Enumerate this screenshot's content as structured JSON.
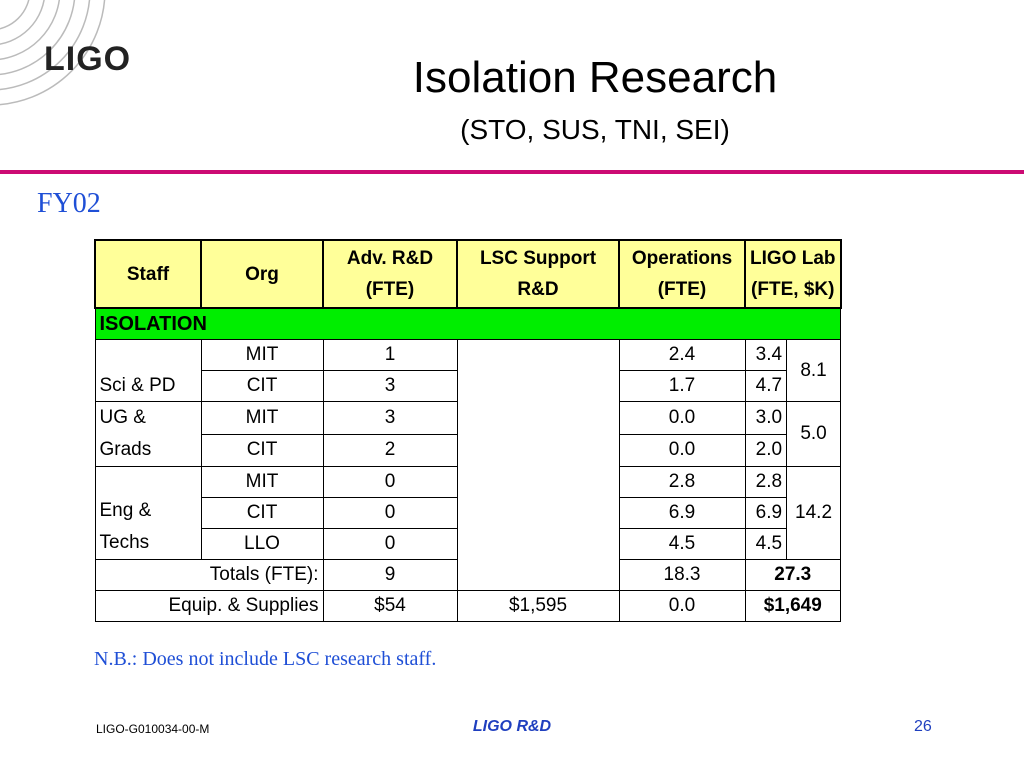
{
  "logo": {
    "text": "LIGO"
  },
  "header": {
    "title": "Isolation Research",
    "subtitle": "(STO, SUS, TNI, SEI)"
  },
  "fy_label": "FY02",
  "table": {
    "headers": {
      "staff": "Staff",
      "org": "Org",
      "adv_l1": "Adv. R&D",
      "adv_l2": "(FTE)",
      "lsc_l1": "LSC Support",
      "lsc_l2": "R&D",
      "ops_l1": "Operations",
      "ops_l2": "(FTE)",
      "lab_l1": "LIGO Lab",
      "lab_l2": "(FTE, $K)"
    },
    "section": "ISOLATION",
    "groups": {
      "sci_pd": "Sci & PD",
      "ug_1": "UG &",
      "ug_2": "Grads",
      "eng_1": "Eng &",
      "eng_2": "Techs"
    },
    "rows": [
      {
        "org": "MIT",
        "adv": "1",
        "ops": "2.4",
        "lab": "3.4"
      },
      {
        "org": "CIT",
        "adv": "3",
        "ops": "1.7",
        "lab": "4.7"
      },
      {
        "org": "MIT",
        "adv": "3",
        "ops": "0.0",
        "lab": "3.0"
      },
      {
        "org": "CIT",
        "adv": "2",
        "ops": "0.0",
        "lab": "2.0"
      },
      {
        "org": "MIT",
        "adv": "0",
        "ops": "2.8",
        "lab": "2.8"
      },
      {
        "org": "CIT",
        "adv": "0",
        "ops": "6.9",
        "lab": "6.9"
      },
      {
        "org": "LLO",
        "adv": "0",
        "ops": "4.5",
        "lab": "4.5"
      }
    ],
    "group_totals": {
      "sci_pd": "8.1",
      "ug": "5.0",
      "eng": "14.2"
    },
    "totals_fte": {
      "label": "Totals (FTE):",
      "adv": "9",
      "ops": "18.3",
      "lab": "27.3"
    },
    "equip": {
      "label": "Equip. & Supplies",
      "adv": "$54",
      "lsc": "$1,595",
      "ops": "0.0",
      "lab": "$1,649"
    }
  },
  "note": "N.B.: Does not include LSC research staff.",
  "footer": {
    "doc_id": "LIGO-G010034-00-M",
    "center": "LIGO R&D",
    "page": "26"
  }
}
